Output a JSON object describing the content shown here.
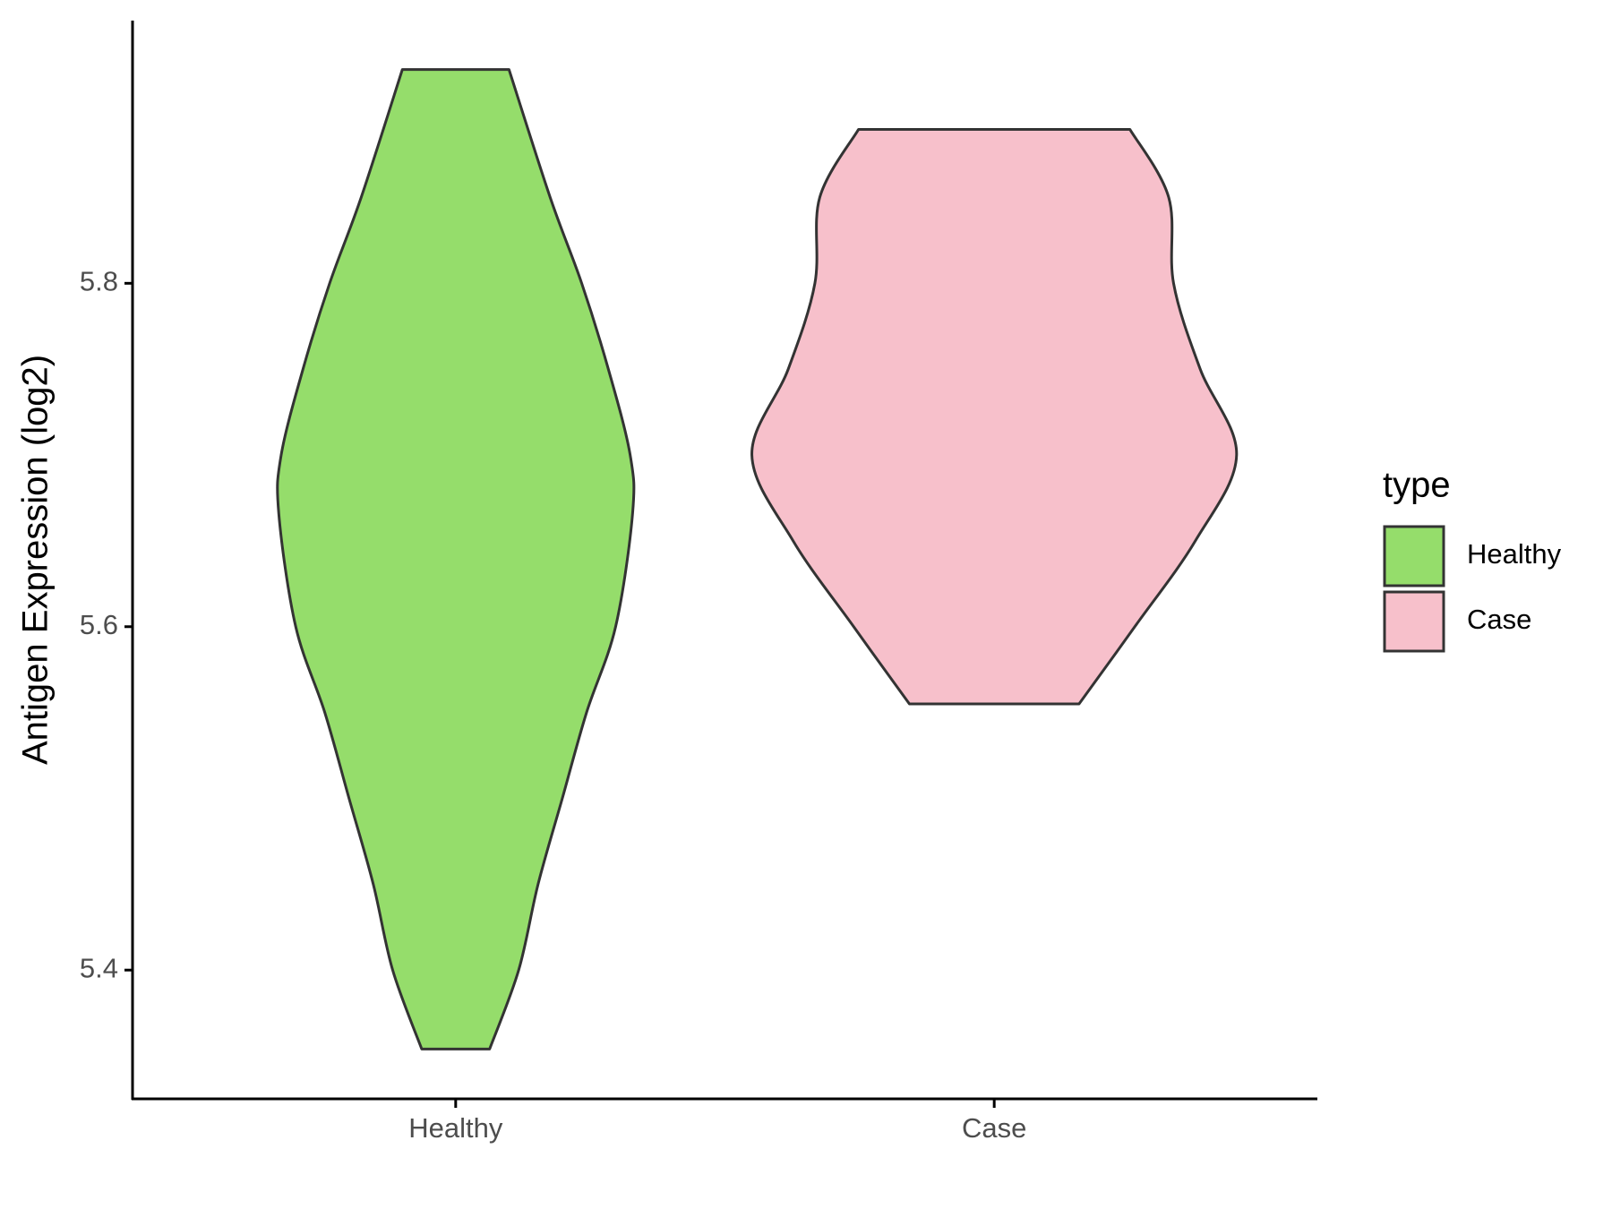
{
  "chart_data": {
    "type": "violin",
    "y_label": "Antigen Expression (log2)",
    "categories": [
      "Healthy",
      "Case"
    ],
    "series": [
      {
        "name": "Healthy",
        "color": "#95dd6b",
        "y": [
          5.9245,
          5.85,
          5.8,
          5.75,
          5.7,
          5.666,
          5.6,
          5.55,
          5.5,
          5.45,
          5.4,
          5.354
        ],
        "density": [
          0.22,
          0.39,
          0.52,
          0.63,
          0.72,
          0.73,
          0.66,
          0.54,
          0.44,
          0.34,
          0.26,
          0.14
        ]
      },
      {
        "name": "Case",
        "color": "#f7c0cb",
        "y": [
          5.8896,
          5.85,
          5.8,
          5.75,
          5.7,
          5.65,
          5.6,
          5.555
        ],
        "density": [
          0.56,
          0.72,
          0.74,
          0.85,
          1.0,
          0.83,
          0.58,
          0.35
        ]
      }
    ],
    "ylim": [
      5.325,
      5.953
    ],
    "yticks": [
      5.4,
      5.6,
      5.8
    ],
    "legend_title": "type",
    "legend_position": "right"
  }
}
